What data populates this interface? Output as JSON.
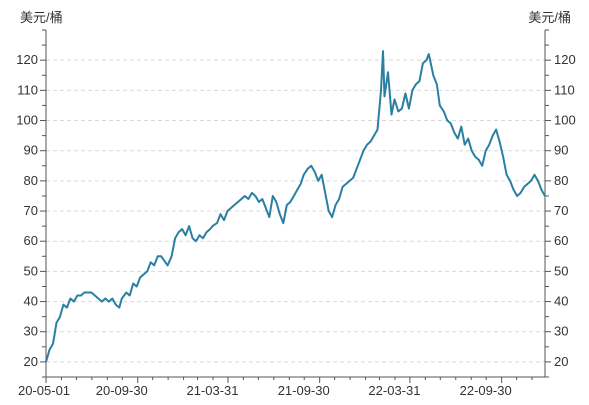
{
  "chart_data": {
    "type": "line",
    "title": "",
    "y_unit_left": "美元/桶",
    "y_unit_right": "美元/桶",
    "xlabel": "",
    "ylabel": "美元/桶",
    "ylim": [
      15,
      130
    ],
    "yticks": [
      20,
      30,
      40,
      50,
      60,
      70,
      80,
      90,
      100,
      110,
      120
    ],
    "grid": "horizontal dashed",
    "x_tick_labels": [
      "20-05-01",
      "20-09-30",
      "21-03-31",
      "21-09-30",
      "22-03-31",
      "22-09-30"
    ],
    "line_color": "#2a7fa3",
    "series": [
      {
        "x": [
          "2020-05-01",
          "2020-05-08",
          "2020-05-15",
          "2020-05-22",
          "2020-05-29",
          "2020-06-05",
          "2020-06-12",
          "2020-06-19",
          "2020-06-26",
          "2020-07-03",
          "2020-07-10",
          "2020-07-17",
          "2020-07-24",
          "2020-07-31",
          "2020-08-07",
          "2020-08-14",
          "2020-08-21",
          "2020-08-28",
          "2020-09-04",
          "2020-09-11",
          "2020-09-18",
          "2020-09-25",
          "2020-09-30",
          "2020-10-09",
          "2020-10-16",
          "2020-10-23",
          "2020-10-30",
          "2020-11-06",
          "2020-11-13",
          "2020-11-20",
          "2020-11-27",
          "2020-12-04",
          "2020-12-11",
          "2020-12-18",
          "2020-12-31",
          "2021-01-08",
          "2021-01-15",
          "2021-01-22",
          "2021-01-29",
          "2021-02-05",
          "2021-02-12",
          "2021-02-19",
          "2021-02-26",
          "2021-03-05",
          "2021-03-12",
          "2021-03-19",
          "2021-03-26",
          "2021-03-31",
          "2021-04-09",
          "2021-04-16",
          "2021-04-23",
          "2021-04-30",
          "2021-05-07",
          "2021-05-14",
          "2021-05-21",
          "2021-05-28",
          "2021-06-04",
          "2021-06-11",
          "2021-06-18",
          "2021-06-25",
          "2021-07-02",
          "2021-07-09",
          "2021-07-16",
          "2021-07-23",
          "2021-07-30",
          "2021-08-06",
          "2021-08-13",
          "2021-08-20",
          "2021-08-27",
          "2021-09-03",
          "2021-09-10",
          "2021-09-17",
          "2021-09-24",
          "2021-09-30",
          "2021-10-08",
          "2021-10-15",
          "2021-10-22",
          "2021-10-29",
          "2021-11-05",
          "2021-11-12",
          "2021-11-19",
          "2021-11-26",
          "2021-12-03",
          "2021-12-10",
          "2021-12-17",
          "2021-12-31",
          "2022-01-07",
          "2022-01-14",
          "2022-01-21",
          "2022-01-28",
          "2022-02-04",
          "2022-02-11",
          "2022-02-18",
          "2022-02-25",
          "2022-03-04",
          "2022-03-08",
          "2022-03-11",
          "2022-03-18",
          "2022-03-25",
          "2022-03-31",
          "2022-04-08",
          "2022-04-15",
          "2022-04-22",
          "2022-04-29",
          "2022-05-06",
          "2022-05-13",
          "2022-05-20",
          "2022-05-27",
          "2022-06-03",
          "2022-06-08",
          "2022-06-17",
          "2022-06-24",
          "2022-06-30",
          "2022-07-08",
          "2022-07-15",
          "2022-07-22",
          "2022-07-29",
          "2022-08-05",
          "2022-08-12",
          "2022-08-19",
          "2022-08-26",
          "2022-09-02",
          "2022-09-09",
          "2022-09-16",
          "2022-09-23",
          "2022-09-30",
          "2022-10-07",
          "2022-10-14",
          "2022-10-21",
          "2022-10-28",
          "2022-11-04",
          "2022-11-11",
          "2022-11-18",
          "2022-11-25",
          "2022-12-02",
          "2022-12-09",
          "2022-12-16",
          "2022-12-23",
          "2022-12-30",
          "2023-01-06",
          "2023-01-13",
          "2023-01-20",
          "2023-01-27"
        ],
        "values": [
          20,
          24,
          26,
          33,
          35,
          39,
          38,
          41,
          40,
          42,
          42,
          43,
          43,
          43,
          42,
          41,
          40,
          41,
          40,
          41,
          39,
          38,
          41,
          43,
          42,
          46,
          45,
          48,
          49,
          50,
          53,
          52,
          55,
          55,
          52,
          55,
          61,
          63,
          64,
          62,
          65,
          61,
          60,
          62,
          61,
          63,
          64,
          65,
          66,
          69,
          67,
          70,
          71,
          72,
          73,
          74,
          75,
          74,
          76,
          75,
          73,
          74,
          71,
          68,
          75,
          73,
          69,
          66,
          72,
          73,
          75,
          77,
          79,
          82,
          84,
          85,
          83,
          80,
          82,
          76,
          70,
          68,
          72,
          74,
          78,
          80,
          81,
          84,
          87,
          90,
          92,
          93,
          95,
          97,
          110,
          123,
          108,
          116,
          102,
          107,
          103,
          104,
          109,
          104,
          110,
          112,
          113,
          119,
          120,
          122,
          115,
          112,
          105,
          103,
          100,
          99,
          96,
          94,
          98,
          92,
          94,
          90,
          88,
          87,
          85,
          90,
          92,
          95,
          97,
          93,
          88,
          82,
          80,
          77,
          75,
          76,
          78,
          79,
          80,
          82,
          80,
          77,
          75
        ]
      }
    ]
  }
}
